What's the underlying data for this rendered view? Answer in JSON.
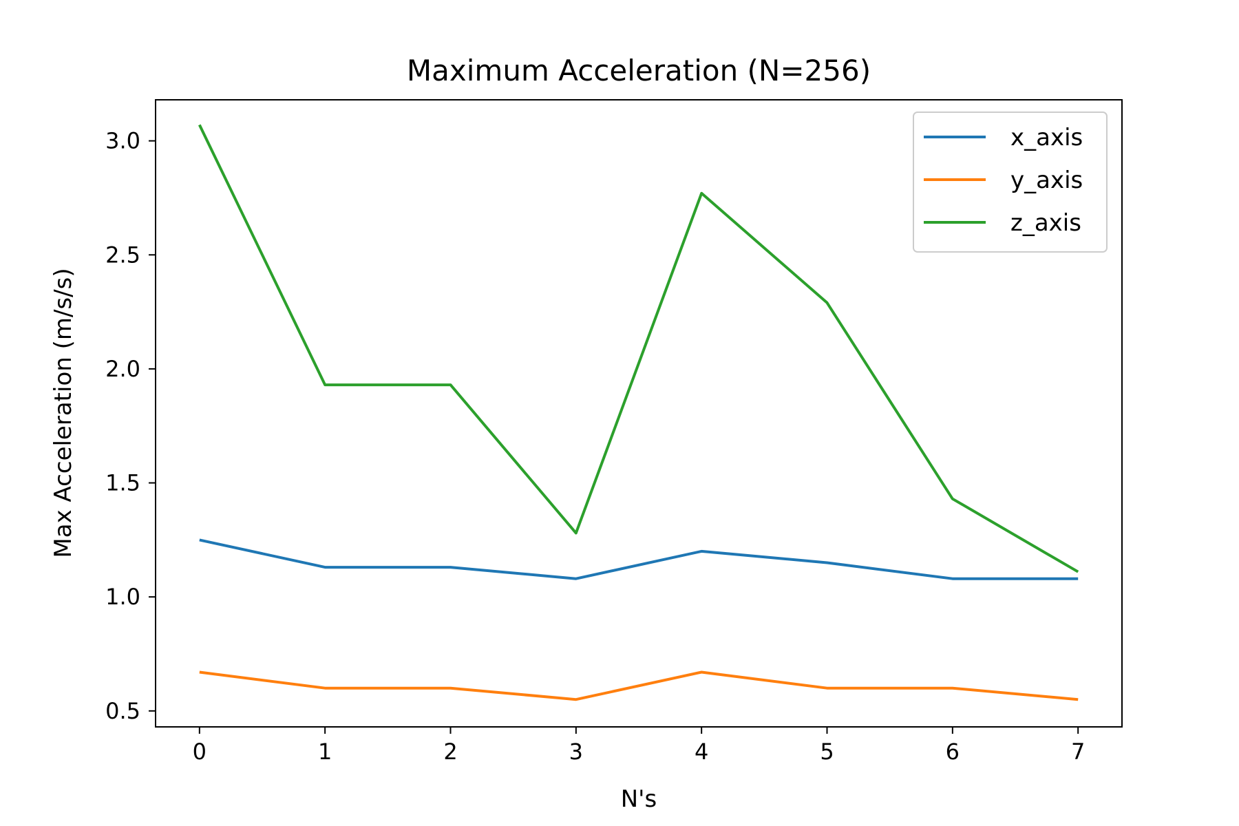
{
  "chart_data": {
    "type": "line",
    "title": "Maximum Acceleration (N=256)",
    "xlabel": "N's",
    "ylabel": "Max Acceleration (m/s/s)",
    "x": [
      0,
      1,
      2,
      3,
      4,
      5,
      6,
      7
    ],
    "xticks": [
      "0",
      "1",
      "2",
      "3",
      "4",
      "5",
      "6",
      "7"
    ],
    "yticks": [
      "0.5",
      "1.0",
      "1.5",
      "2.0",
      "2.5",
      "3.0"
    ],
    "xlim": [
      -0.35,
      7.35
    ],
    "ylim": [
      0.43,
      3.18
    ],
    "grid": false,
    "legend_position": "top-right",
    "series": [
      {
        "name": "x_axis",
        "color": "#1f77b4",
        "values": [
          1.25,
          1.13,
          1.13,
          1.08,
          1.2,
          1.15,
          1.08,
          1.08
        ]
      },
      {
        "name": "y_axis",
        "color": "#ff7f0e",
        "values": [
          0.67,
          0.6,
          0.6,
          0.55,
          0.67,
          0.6,
          0.6,
          0.55
        ]
      },
      {
        "name": "z_axis",
        "color": "#2ca02c",
        "values": [
          3.07,
          1.93,
          1.93,
          1.28,
          2.77,
          2.29,
          1.43,
          1.11
        ]
      }
    ]
  }
}
